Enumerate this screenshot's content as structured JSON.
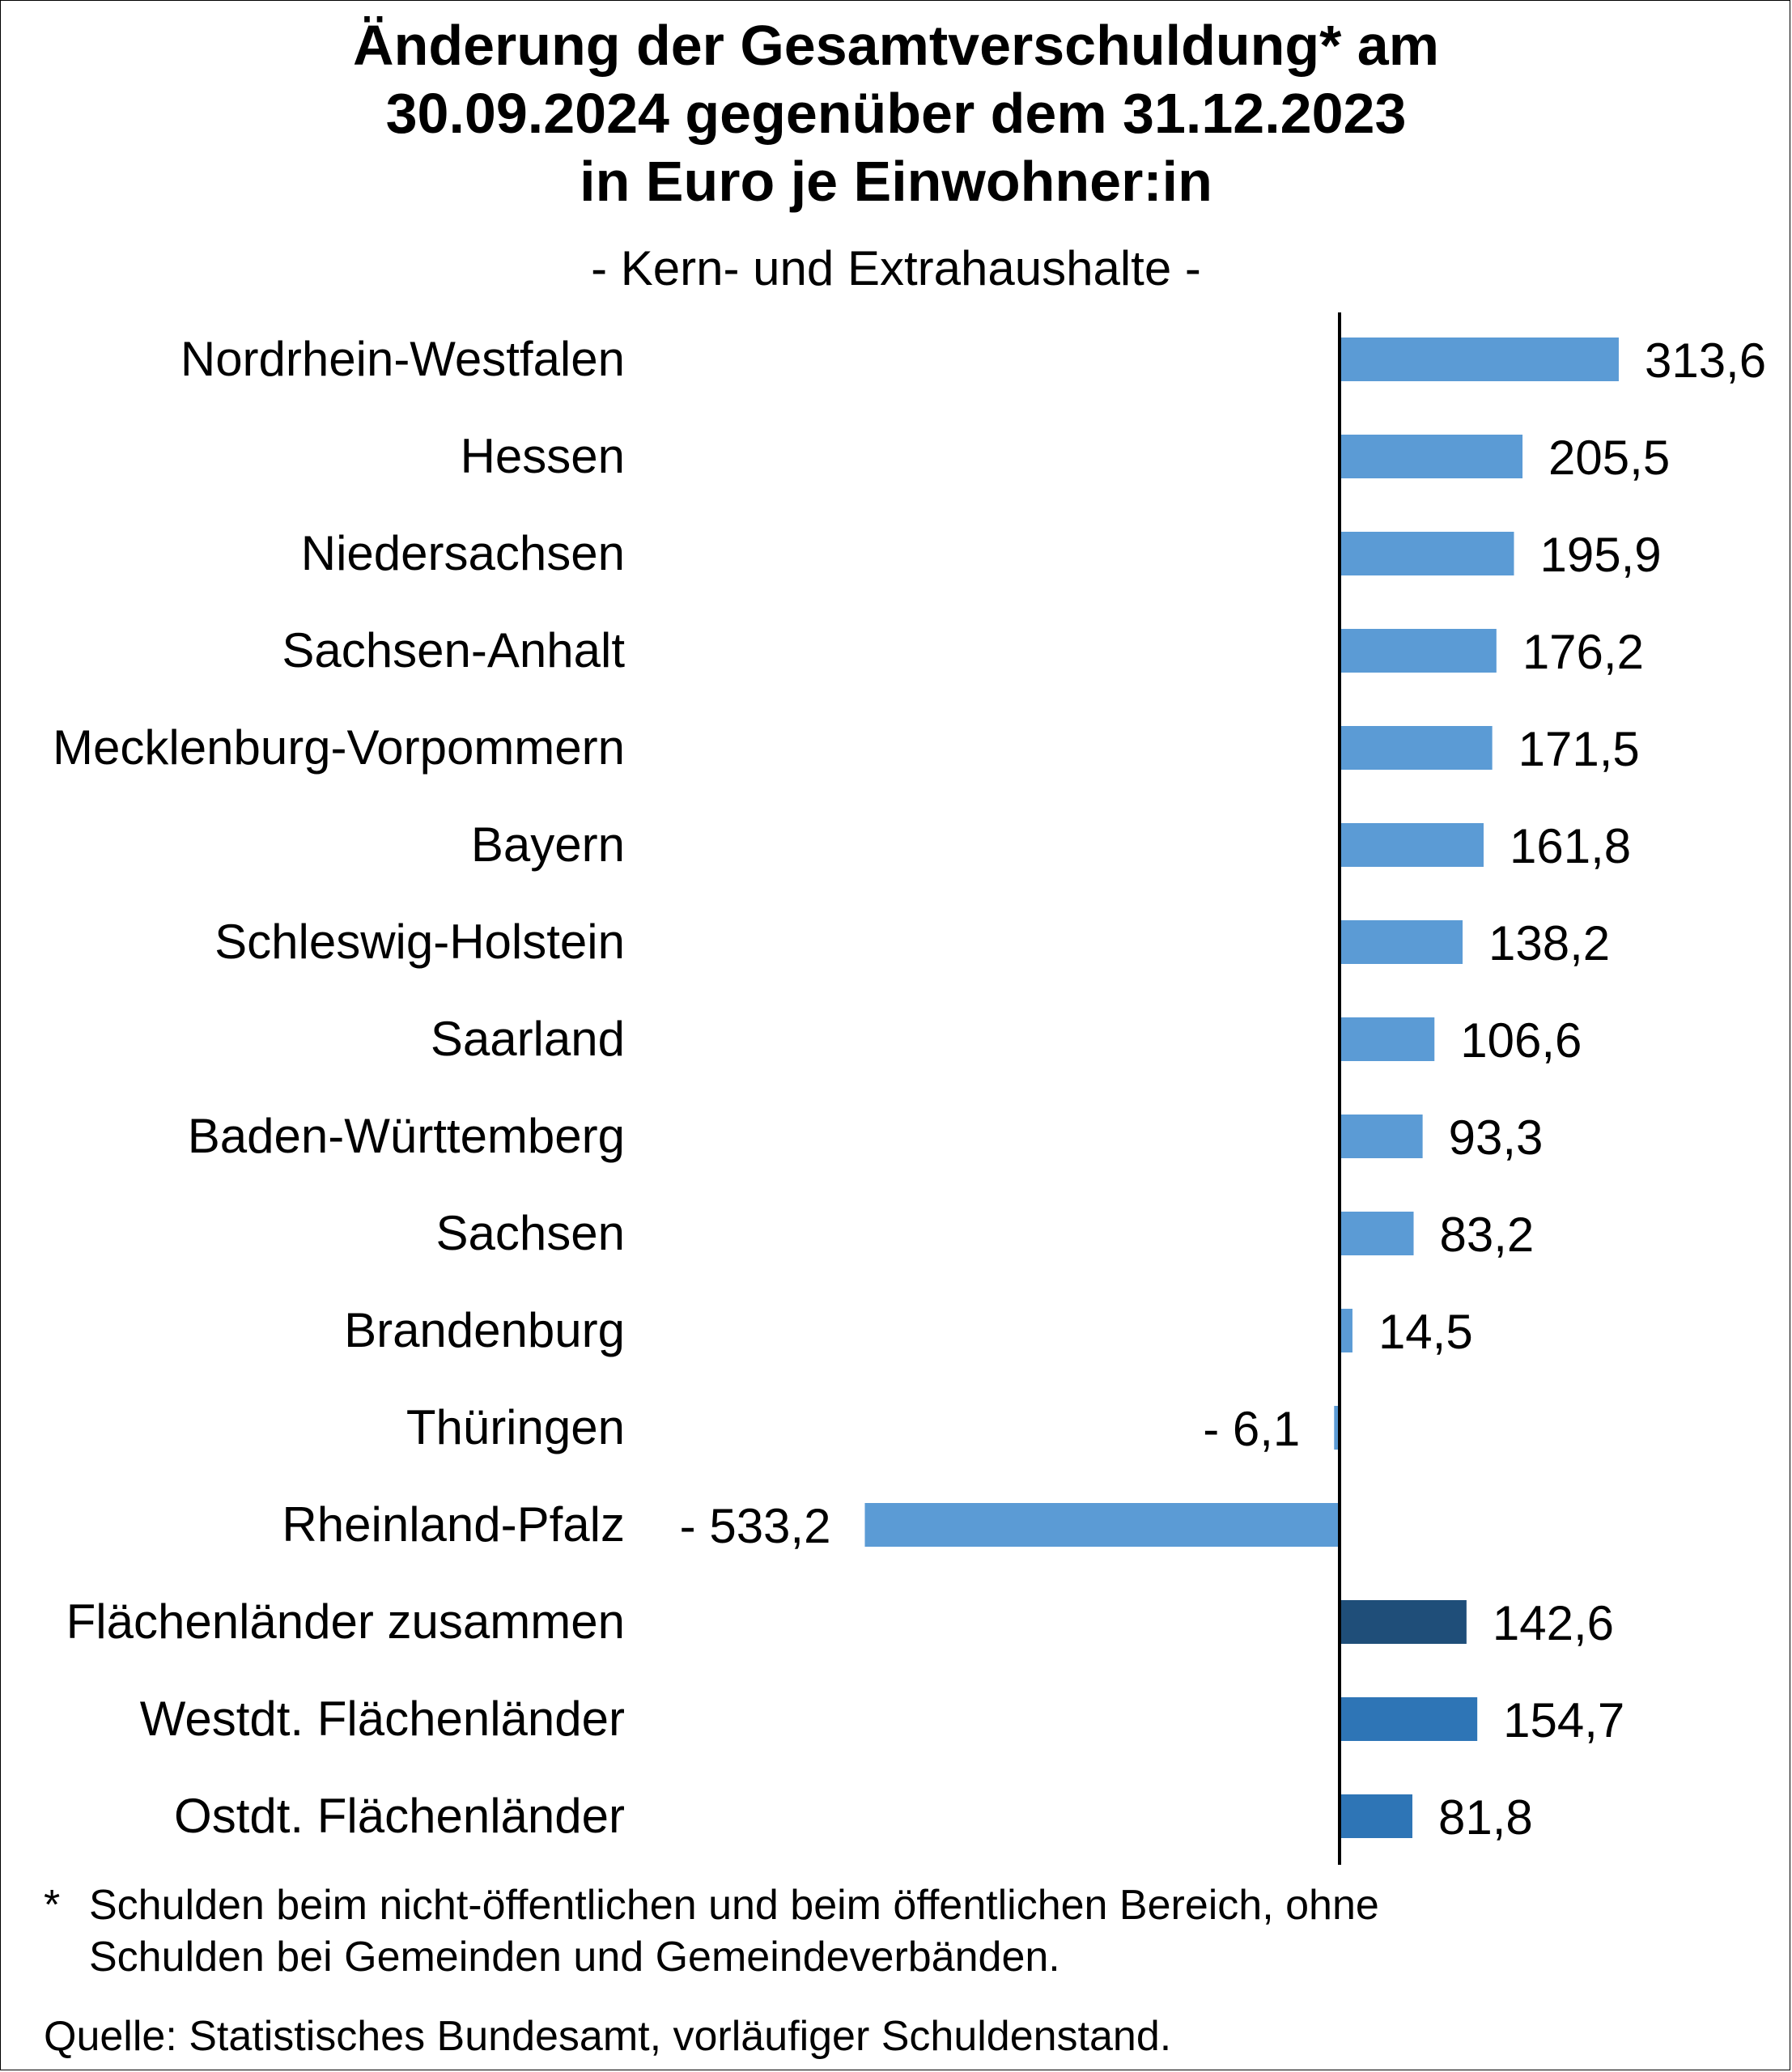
{
  "chart_data": {
    "type": "bar",
    "orientation": "horizontal",
    "title_lines": [
      "Änderung der Gesamtverschuldung* am",
      "30.09.2024 gegenüber dem 31.12.2023",
      "in Euro je Einwohner:in"
    ],
    "subtitle": "- Kern- und Extrahaushalte -",
    "categories": [
      "Nordrhein-Westfalen",
      "Hessen",
      "Niedersachsen",
      "Sachsen-Anhalt",
      "Mecklenburg-Vorpommern",
      "Bayern",
      "Schleswig-Holstein",
      "Saarland",
      "Baden-Württemberg",
      "Sachsen",
      "Brandenburg",
      "Thüringen",
      "Rheinland-Pfalz",
      "Flächenländer zusammen",
      "Westdt. Flächenländer",
      "Ostdt. Flächenländer"
    ],
    "values": [
      313.6,
      205.5,
      195.9,
      176.2,
      171.5,
      161.8,
      138.2,
      106.6,
      93.3,
      83.2,
      14.5,
      -6.1,
      -533.2,
      142.6,
      154.7,
      81.8
    ],
    "value_labels": [
      "313,6",
      "205,5",
      "195,9",
      "176,2",
      "171,5",
      "161,8",
      "138,2",
      "106,6",
      "93,3",
      "83,2",
      "14,5",
      "- 6,1",
      "- 533,2",
      "142,6",
      "154,7",
      "81,8"
    ],
    "bar_colors": [
      "#5b9bd5",
      "#5b9bd5",
      "#5b9bd5",
      "#5b9bd5",
      "#5b9bd5",
      "#5b9bd5",
      "#5b9bd5",
      "#5b9bd5",
      "#5b9bd5",
      "#5b9bd5",
      "#5b9bd5",
      "#5b9bd5",
      "#5b9bd5",
      "#1f4e79",
      "#2e75b6",
      "#2e75b6"
    ],
    "xlabel": "",
    "ylabel": "",
    "grid": false
  },
  "footnote": {
    "marker": "*",
    "lines": [
      "Schulden beim nicht-öffentlichen und beim öffentlichen Bereich, ohne",
      "Schulden bei Gemeinden und Gemeindeverbänden."
    ]
  },
  "source": "Quelle: Statistisches Bundesamt, vorläufiger Schuldenstand."
}
